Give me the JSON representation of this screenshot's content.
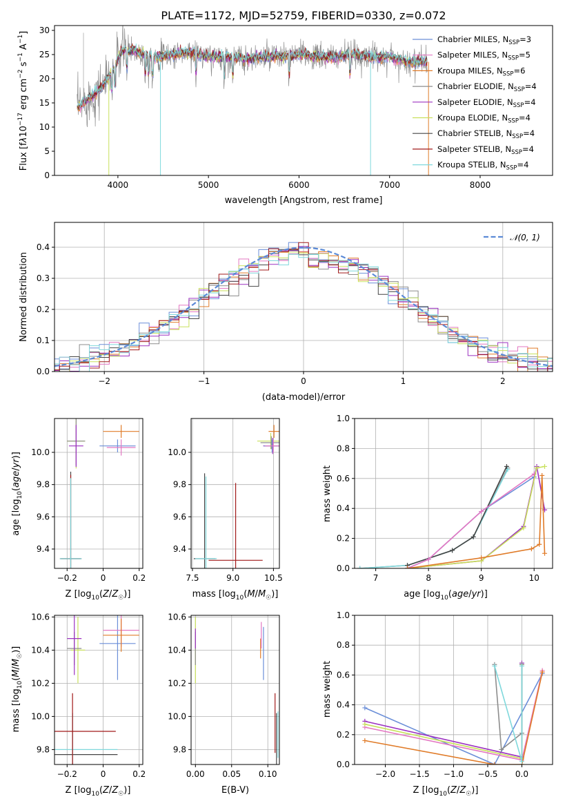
{
  "chart_data": [
    {
      "id": "spectrum",
      "type": "line",
      "title": "PLATE=1172, MJD=52759, FIBERID=0330, z=0.072",
      "xlabel": "wavelength [Angstrom, rest frame]",
      "ylabel": "Flux [f_λ10⁻¹⁷ erg cm⁻² s⁻¹ A⁻¹]",
      "xlim": [
        3300,
        8800
      ],
      "ylim": [
        0,
        31
      ],
      "xticks": [
        4000,
        5000,
        6000,
        7000,
        8000
      ],
      "yticks": [
        0,
        5,
        10,
        15,
        20,
        25,
        30
      ],
      "grid": false,
      "legend_position": "top-right",
      "continuum": {
        "x": [
          3550,
          3650,
          3750,
          3850,
          3950,
          4050,
          4150,
          4300,
          4450,
          4600,
          4800,
          5000,
          5200,
          5400,
          5600,
          5800,
          6000,
          6200,
          6400,
          6600,
          6800,
          7000,
          7200,
          7400
        ],
        "y": [
          14,
          15.5,
          17,
          19,
          22,
          26,
          26,
          25,
          24.5,
          25,
          25.5,
          24.5,
          24.5,
          24,
          24.5,
          24.5,
          25,
          24.5,
          24.5,
          25,
          24.5,
          24.5,
          23.5,
          23.5
        ]
      },
      "series": [
        {
          "name": "Chabrier MILES, N_SSP=3",
          "name_main": "Chabrier MILES, N",
          "name_sub": "SSP",
          "name_tail": "=3",
          "color": "#6a8ed8"
        },
        {
          "name": "Salpeter MILES, N_SSP=5",
          "name_main": "Salpeter MILES, N",
          "name_sub": "SSP",
          "name_tail": "=5",
          "color": "#e377c2"
        },
        {
          "name": "Kroupa MILES, N_SSP=6",
          "name_main": "Kroupa MILES, N",
          "name_sub": "SSP",
          "name_tail": "=6",
          "color": "#e07b28"
        },
        {
          "name": "Chabrier ELODIE, N_SSP=4",
          "name_main": "Chabrier ELODIE, N",
          "name_sub": "SSP",
          "name_tail": "=4",
          "color": "#8c8c8c"
        },
        {
          "name": "Salpeter ELODIE, N_SSP=4",
          "name_main": "Salpeter ELODIE, N",
          "name_sub": "SSP",
          "name_tail": "=4",
          "color": "#9b30c0"
        },
        {
          "name": "Kroupa ELODIE, N_SSP=4",
          "name_main": "Kroupa ELODIE, N",
          "name_sub": "SSP",
          "name_tail": "=4",
          "color": "#c8e05a"
        },
        {
          "name": "Chabrier STELIB, N_SSP=4",
          "name_main": "Chabrier STELIB, N",
          "name_sub": "SSP",
          "name_tail": "=4",
          "color": "#444444"
        },
        {
          "name": "Salpeter STELIB, N_SSP=4",
          "name_main": "Salpeter STELIB, N",
          "name_sub": "SSP",
          "name_tail": "=4",
          "color": "#a01818"
        },
        {
          "name": "Kroupa STELIB, N_SSP=4",
          "name_main": "Kroupa STELIB, N",
          "name_sub": "SSP",
          "name_tail": "=4",
          "color": "#7fd8dc"
        }
      ]
    },
    {
      "id": "residuals",
      "type": "line",
      "xlabel": "(data-model)/error",
      "ylabel": "Normed distribution",
      "xlim": [
        -2.5,
        2.5
      ],
      "ylim": [
        0,
        0.48
      ],
      "xticks": [
        -2,
        -1,
        0,
        1,
        2
      ],
      "yticks": [
        0.0,
        0.1,
        0.2,
        0.3,
        0.4
      ],
      "grid": true,
      "legend": "𝒩(0, 1)",
      "legend_position": "top-right",
      "reference_curve": {
        "name": "N(0,1)",
        "mean": 0,
        "sigma": 1,
        "color": "#5b8ad6"
      },
      "bin_width": 0.1
    },
    {
      "id": "age_vs_Z",
      "type": "scatter",
      "xlabel": "Z [log10(Z/Z☉)]",
      "ylabel": "age [log10(age/yr)]",
      "xlim": [
        -0.27,
        0.22
      ],
      "ylim": [
        9.28,
        10.21
      ],
      "xticks": [
        -0.2,
        0.0,
        0.2
      ],
      "yticks": [
        9.4,
        9.6,
        9.8,
        10.0
      ],
      "grid": true,
      "points": [
        {
          "x": -0.18,
          "y": 9.34,
          "xerr": 0.06,
          "yerr": 0.54,
          "color": "#444444"
        },
        {
          "x": -0.18,
          "y": 9.34,
          "xerr": 0.055,
          "yerr": 0.52,
          "color": "#a01818"
        },
        {
          "x": -0.18,
          "y": 9.34,
          "xerr": 0.06,
          "yerr": 0.5,
          "color": "#7fd8dc"
        },
        {
          "x": -0.15,
          "y": 10.07,
          "xerr": 0.05,
          "yerr": 0.17,
          "color": "#c8e05a"
        },
        {
          "x": -0.15,
          "y": 10.07,
          "xerr": 0.05,
          "yerr": 0.15,
          "color": "#8c8c8c"
        },
        {
          "x": -0.15,
          "y": 10.04,
          "xerr": 0.04,
          "yerr": 0.13,
          "color": "#9b30c0"
        },
        {
          "x": 0.08,
          "y": 10.04,
          "xerr": 0.1,
          "yerr": 0.04,
          "color": "#6a8ed8"
        },
        {
          "x": 0.1,
          "y": 10.03,
          "xerr": 0.08,
          "yerr": 0.05,
          "color": "#e377c2"
        },
        {
          "x": 0.1,
          "y": 10.13,
          "xerr": 0.1,
          "yerr": 0.04,
          "color": "#e07b28"
        }
      ]
    },
    {
      "id": "age_vs_mass",
      "type": "scatter",
      "xlabel": "mass [log10(M/M☉)]",
      "ylabel": "",
      "xlim": [
        7.45,
        10.72
      ],
      "ylim": [
        9.28,
        10.21
      ],
      "xticks": [
        7.5,
        9.0,
        10.5
      ],
      "xtick_labels": [
        "7.5",
        "9.0",
        "10.5"
      ],
      "yticks": [
        9.4,
        9.6,
        9.8,
        10.0
      ],
      "grid": true,
      "points": [
        {
          "x": 9.1,
          "y": 9.33,
          "xerr": 1.0,
          "yerr": 0.48,
          "color": "#a01818"
        },
        {
          "x": 7.95,
          "y": 9.34,
          "xerr": 0.4,
          "yerr": 0.53,
          "color": "#444444"
        },
        {
          "x": 8.0,
          "y": 9.34,
          "xerr": 0.4,
          "yerr": 0.51,
          "color": "#7fd8dc"
        },
        {
          "x": 10.4,
          "y": 10.07,
          "xerr": 0.5,
          "yerr": 0.05,
          "color": "#c8e05a"
        },
        {
          "x": 10.42,
          "y": 10.06,
          "xerr": 0.4,
          "yerr": 0.04,
          "color": "#8c8c8c"
        },
        {
          "x": 10.47,
          "y": 10.04,
          "xerr": 0.35,
          "yerr": 0.05,
          "color": "#9b30c0"
        },
        {
          "x": 10.45,
          "y": 10.04,
          "xerr": 0.3,
          "yerr": 0.04,
          "color": "#6a8ed8"
        },
        {
          "x": 10.49,
          "y": 10.04,
          "xerr": 0.3,
          "yerr": 0.04,
          "color": "#e377c2"
        },
        {
          "x": 10.52,
          "y": 10.13,
          "xerr": 0.2,
          "yerr": 0.04,
          "color": "#e07b28"
        }
      ]
    },
    {
      "id": "mass_weight_vs_age",
      "type": "line",
      "xlabel": "age [log10(age/yr)]",
      "ylabel": "mass weight",
      "xlim": [
        6.6,
        10.35
      ],
      "ylim": [
        0,
        1.0
      ],
      "xticks": [
        7,
        8,
        9,
        10
      ],
      "yticks": [
        0.0,
        0.2,
        0.4,
        0.6,
        0.8,
        1.0
      ],
      "grid": true,
      "series": [
        {
          "color": "#8c8c8c",
          "x": [
            6.7,
            7.6,
            8.45,
            8.85,
            9.5
          ],
          "y": [
            0.0,
            0.02,
            0.12,
            0.21,
            0.67
          ]
        },
        {
          "color": "#7fd8dc",
          "x": [
            6.7,
            7.6,
            8.45,
            8.85,
            9.5
          ],
          "y": [
            0.0,
            0.02,
            0.12,
            0.21,
            0.66
          ]
        },
        {
          "color": "#444444",
          "x": [
            7.6,
            8.45,
            8.85,
            9.48
          ],
          "y": [
            0.02,
            0.12,
            0.21,
            0.68
          ]
        },
        {
          "color": "#6a8ed8",
          "x": [
            7.6,
            8.0,
            9.0,
            10.0
          ],
          "y": [
            0.0,
            0.06,
            0.38,
            0.61
          ]
        },
        {
          "color": "#e377c2",
          "x": [
            7.6,
            8.0,
            9.0,
            10.0
          ],
          "y": [
            0.0,
            0.06,
            0.38,
            0.63
          ]
        },
        {
          "color": "#9b30c0",
          "x": [
            7.6,
            9.0,
            9.8,
            10.05,
            10.2
          ],
          "y": [
            0.0,
            0.05,
            0.28,
            0.68,
            0.39
          ]
        },
        {
          "color": "#c8e05a",
          "x": [
            7.6,
            9.0,
            9.8,
            10.05,
            10.2
          ],
          "y": [
            0.0,
            0.05,
            0.27,
            0.67,
            0.68
          ]
        },
        {
          "color": "#e07b28",
          "x": [
            7.6,
            9.0,
            9.95,
            10.1,
            10.15,
            10.2
          ],
          "y": [
            0.0,
            0.07,
            0.13,
            0.16,
            0.62,
            0.1
          ]
        }
      ]
    },
    {
      "id": "mass_vs_Z",
      "type": "scatter",
      "xlabel": "Z [log10(Z/Z☉)]",
      "ylabel": "mass [log10(M/M☉)]",
      "xlim": [
        -0.27,
        0.22
      ],
      "ylim": [
        9.71,
        10.61
      ],
      "xticks": [
        -0.2,
        0.0,
        0.2
      ],
      "yticks": [
        9.8,
        10.0,
        10.2,
        10.4,
        10.6
      ],
      "grid": true,
      "points": [
        {
          "x": -0.17,
          "y": 9.77,
          "xerr": 0.25,
          "yerr": 0.25,
          "color": "#444444"
        },
        {
          "x": -0.17,
          "y": 9.8,
          "xerr": 0.25,
          "yerr": 0.22,
          "color": "#7fd8dc"
        },
        {
          "x": -0.17,
          "y": 9.91,
          "xerr": 0.24,
          "yerr": 0.23,
          "color": "#a01818"
        },
        {
          "x": -0.14,
          "y": 10.4,
          "xerr": 0.04,
          "yerr": 0.2,
          "color": "#c8e05a"
        },
        {
          "x": -0.16,
          "y": 10.41,
          "xerr": 0.04,
          "yerr": 0.1,
          "color": "#8c8c8c"
        },
        {
          "x": -0.16,
          "y": 10.47,
          "xerr": 0.04,
          "yerr": 0.22,
          "color": "#9b30c0"
        },
        {
          "x": 0.08,
          "y": 10.44,
          "xerr": 0.1,
          "yerr": 0.22,
          "color": "#6a8ed8"
        },
        {
          "x": 0.1,
          "y": 10.52,
          "xerr": 0.1,
          "yerr": 0.1,
          "color": "#e377c2"
        },
        {
          "x": 0.1,
          "y": 10.49,
          "xerr": 0.1,
          "yerr": 0.1,
          "color": "#e07b28"
        }
      ]
    },
    {
      "id": "mass_vs_ebv",
      "type": "scatter",
      "xlabel": "E(B-V)",
      "ylabel": "",
      "xlim": [
        -0.006,
        0.116
      ],
      "ylim": [
        9.71,
        10.61
      ],
      "xticks": [
        0.0,
        0.05,
        0.1
      ],
      "xtick_labels": [
        "0.00",
        "0.05",
        "0.10"
      ],
      "yticks": [
        9.8,
        10.0,
        10.2,
        10.4,
        10.6
      ],
      "grid": true,
      "points": [
        {
          "x": 0.0,
          "y": 10.4,
          "yerr": 0.2,
          "color": "#c8e05a"
        },
        {
          "x": 0.0,
          "y": 10.41,
          "yerr": 0.1,
          "color": "#8c8c8c"
        },
        {
          "x": 0.0,
          "y": 10.47,
          "yerr": 0.06,
          "color": "#9b30c0"
        },
        {
          "x": 0.09,
          "y": 10.41,
          "yerr": 0.06,
          "color": "#e07b28"
        },
        {
          "x": 0.091,
          "y": 10.49,
          "yerr": 0.08,
          "color": "#e377c2"
        },
        {
          "x": 0.094,
          "y": 10.38,
          "yerr": 0.16,
          "color": "#6a8ed8"
        },
        {
          "x": 0.11,
          "y": 9.96,
          "yerr": 0.18,
          "color": "#a01818"
        },
        {
          "x": 0.112,
          "y": 9.86,
          "yerr": 0.16,
          "color": "#444444"
        },
        {
          "x": 0.114,
          "y": 9.89,
          "yerr": 0.14,
          "color": "#7fd8dc"
        }
      ]
    },
    {
      "id": "mass_weight_vs_Z",
      "type": "line",
      "xlabel": "Z [log10(Z/Z☉)]",
      "ylabel": "mass weight",
      "xlim": [
        -2.45,
        0.45
      ],
      "ylim": [
        0,
        1.0
      ],
      "xticks": [
        -2.0,
        -1.5,
        -1.0,
        -0.5,
        0.0
      ],
      "xtick_labels": [
        "−2.0",
        "−1.5",
        "−1.0",
        "−0.5",
        "0.0"
      ],
      "yticks": [
        0.0,
        0.2,
        0.4,
        0.6,
        0.8,
        1.0
      ],
      "grid": true,
      "series": [
        {
          "color": "#6a8ed8",
          "x": [
            -2.3,
            -0.4,
            0.3
          ],
          "y": [
            0.38,
            0.0,
            0.61
          ]
        },
        {
          "color": "#e377c2",
          "x": [
            -2.3,
            0.0,
            0.3
          ],
          "y": [
            0.25,
            0.03,
            0.63
          ]
        },
        {
          "color": "#9b30c0",
          "x": [
            -2.3,
            0.0,
            0.0
          ],
          "y": [
            0.29,
            0.05,
            0.68
          ]
        },
        {
          "color": "#c8e05a",
          "x": [
            -2.3,
            0.0,
            0.0
          ],
          "y": [
            0.27,
            0.04,
            0.67
          ]
        },
        {
          "color": "#e07b28",
          "x": [
            -2.3,
            -0.4,
            0.0,
            0.3
          ],
          "y": [
            0.16,
            0.0,
            0.0,
            0.62
          ]
        },
        {
          "color": "#8c8c8c",
          "x": [
            -0.4,
            -0.3,
            0.0,
            0.0
          ],
          "y": [
            0.67,
            0.1,
            0.21,
            0.67
          ]
        },
        {
          "color": "#7fd8dc",
          "x": [
            -0.4,
            0.0,
            0.0
          ],
          "y": [
            0.66,
            0.02,
            0.66
          ]
        }
      ]
    }
  ]
}
